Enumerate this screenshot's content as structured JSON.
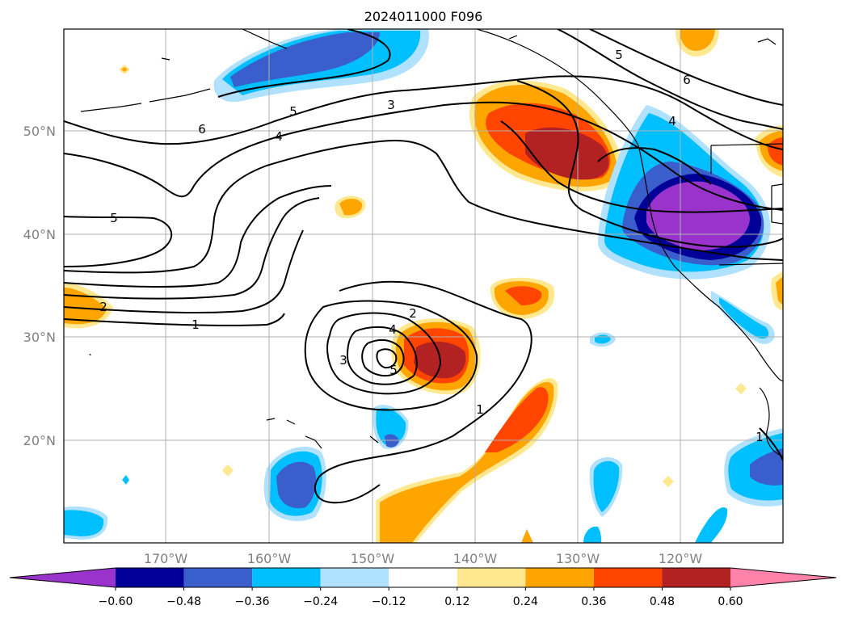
{
  "title": "2024011000 F096",
  "lat_labels": [
    "50°N",
    "40°N",
    "30°N",
    "20°N"
  ],
  "lon_labels": [
    "170°W",
    "160°W",
    "150°W",
    "140°W",
    "130°W",
    "120°W"
  ],
  "colorbar": {
    "ticks": [
      "−0.60",
      "−0.48",
      "−0.36",
      "−0.24",
      "−0.12",
      "0.12",
      "0.24",
      "0.36",
      "0.48",
      "0.60"
    ],
    "colors": [
      "#9933cc",
      "#000099",
      "#3a5fcd",
      "#00bfff",
      "#b0e2ff",
      "#ffffff",
      "#ffe88f",
      "#ffa500",
      "#ff4500",
      "#b22222",
      "#ff82ab"
    ]
  },
  "contour_labels": [
    "6",
    "5",
    "4",
    "3",
    "5",
    "2",
    "1",
    "2",
    "4",
    "3",
    "5",
    "1",
    "1",
    "4",
    "5",
    "6"
  ]
}
